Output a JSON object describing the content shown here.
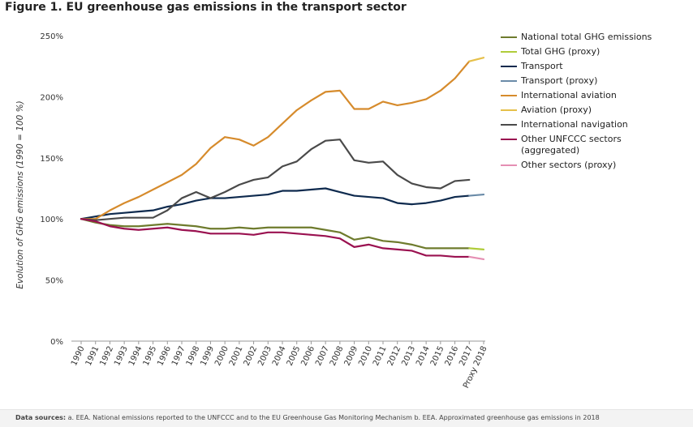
{
  "title": "Figure 1. EU greenhouse gas emissions in the transport sector",
  "footer": {
    "label": "Data sources:",
    "text": "a. EEA. National emissions reported to the UNFCCC and to the EU Greenhouse Gas Monitoring Mechanism    b. EEA. Approximated greenhouse gas emissions in 2018"
  },
  "chart_data": {
    "type": "line",
    "ylabel": "Evolution of GHG emissions (1990 = 100 %)",
    "xlabel": "",
    "ylim": [
      0,
      250
    ],
    "yticks": [
      0,
      50,
      100,
      150,
      200,
      250
    ],
    "ytick_labels": [
      "0%",
      "50%",
      "100%",
      "150%",
      "200%",
      "250%"
    ],
    "grid": false,
    "legend_position": "right",
    "categories": [
      "1990",
      "1991",
      "1992",
      "1993",
      "1994",
      "1995",
      "1996",
      "1997",
      "1998",
      "1999",
      "2000",
      "2001",
      "2002",
      "2003",
      "2004",
      "2005",
      "2006",
      "2007",
      "2008",
      "2009",
      "2010",
      "2011",
      "2012",
      "2013",
      "2014",
      "2015",
      "2016",
      "2017",
      "Proxy 2018"
    ],
    "series": [
      {
        "name": "National total GHG emissions",
        "color": "#6e7b2d",
        "values": [
          100,
          97,
          95,
          94,
          94,
          95,
          96,
          95,
          94,
          92,
          92,
          93,
          92,
          93,
          93,
          93,
          93,
          91,
          89,
          83,
          85,
          82,
          81,
          79,
          76,
          76,
          76,
          76,
          null
        ]
      },
      {
        "name": "Total GHG (proxy)",
        "color": "#b0cc3a",
        "values": [
          null,
          null,
          null,
          null,
          null,
          null,
          null,
          null,
          null,
          null,
          null,
          null,
          null,
          null,
          null,
          null,
          null,
          null,
          null,
          null,
          null,
          null,
          null,
          null,
          null,
          null,
          null,
          76,
          75
        ]
      },
      {
        "name": "Transport",
        "color": "#0e2a4e",
        "values": [
          100,
          102,
          104,
          105,
          106,
          107,
          110,
          112,
          115,
          117,
          117,
          118,
          119,
          120,
          123,
          123,
          124,
          125,
          122,
          119,
          118,
          117,
          113,
          112,
          113,
          115,
          118,
          119,
          null
        ]
      },
      {
        "name": "Transport (proxy)",
        "color": "#6a8ba8",
        "values": [
          null,
          null,
          null,
          null,
          null,
          null,
          null,
          null,
          null,
          null,
          null,
          null,
          null,
          null,
          null,
          null,
          null,
          null,
          null,
          null,
          null,
          null,
          null,
          null,
          null,
          null,
          null,
          119,
          120
        ]
      },
      {
        "name": "International aviation",
        "color": "#d68b2c",
        "values": [
          100,
          100,
          107,
          113,
          118,
          124,
          130,
          136,
          145,
          158,
          167,
          165,
          160,
          167,
          178,
          189,
          197,
          204,
          205,
          190,
          190,
          196,
          193,
          195,
          198,
          205,
          215,
          229,
          null
        ]
      },
      {
        "name": "Aviation (proxy)",
        "color": "#e6c04a",
        "values": [
          null,
          null,
          null,
          null,
          null,
          null,
          null,
          null,
          null,
          null,
          null,
          null,
          null,
          null,
          null,
          null,
          null,
          null,
          null,
          null,
          null,
          null,
          null,
          null,
          null,
          null,
          null,
          229,
          232
        ]
      },
      {
        "name": "International navigation",
        "color": "#4a4a4a",
        "values": [
          100,
          99,
          100,
          101,
          101,
          101,
          107,
          117,
          122,
          117,
          122,
          128,
          132,
          134,
          143,
          147,
          157,
          164,
          165,
          148,
          146,
          147,
          136,
          129,
          126,
          125,
          131,
          132,
          null
        ]
      },
      {
        "name": "Other UNFCCC sectors (aggregated)",
        "color": "#9a1150",
        "values": [
          100,
          98,
          94,
          92,
          91,
          92,
          93,
          91,
          90,
          88,
          88,
          88,
          87,
          89,
          89,
          88,
          87,
          86,
          84,
          77,
          79,
          76,
          75,
          74,
          70,
          70,
          69,
          69,
          null
        ]
      },
      {
        "name": "Other sectors (proxy)",
        "color": "#e58fb3",
        "values": [
          null,
          null,
          null,
          null,
          null,
          null,
          null,
          null,
          null,
          null,
          null,
          null,
          null,
          null,
          null,
          null,
          null,
          null,
          null,
          null,
          null,
          null,
          null,
          null,
          null,
          null,
          null,
          69,
          67
        ]
      }
    ]
  },
  "legend": [
    {
      "lines": [
        "National total GHG emissions"
      ],
      "color": "#6e7b2d"
    },
    {
      "lines": [
        "Total GHG (proxy)"
      ],
      "color": "#b0cc3a"
    },
    {
      "lines": [
        "Transport"
      ],
      "color": "#0e2a4e"
    },
    {
      "lines": [
        "Transport (proxy)"
      ],
      "color": "#6a8ba8"
    },
    {
      "lines": [
        "International aviation"
      ],
      "color": "#d68b2c"
    },
    {
      "lines": [
        "Aviation (proxy)"
      ],
      "color": "#e6c04a"
    },
    {
      "lines": [
        "International navigation"
      ],
      "color": "#4a4a4a"
    },
    {
      "lines": [
        "Other UNFCCC sectors",
        "(aggregated)"
      ],
      "color": "#9a1150"
    },
    {
      "lines": [
        "Other sectors (proxy)"
      ],
      "color": "#e58fb3"
    }
  ]
}
